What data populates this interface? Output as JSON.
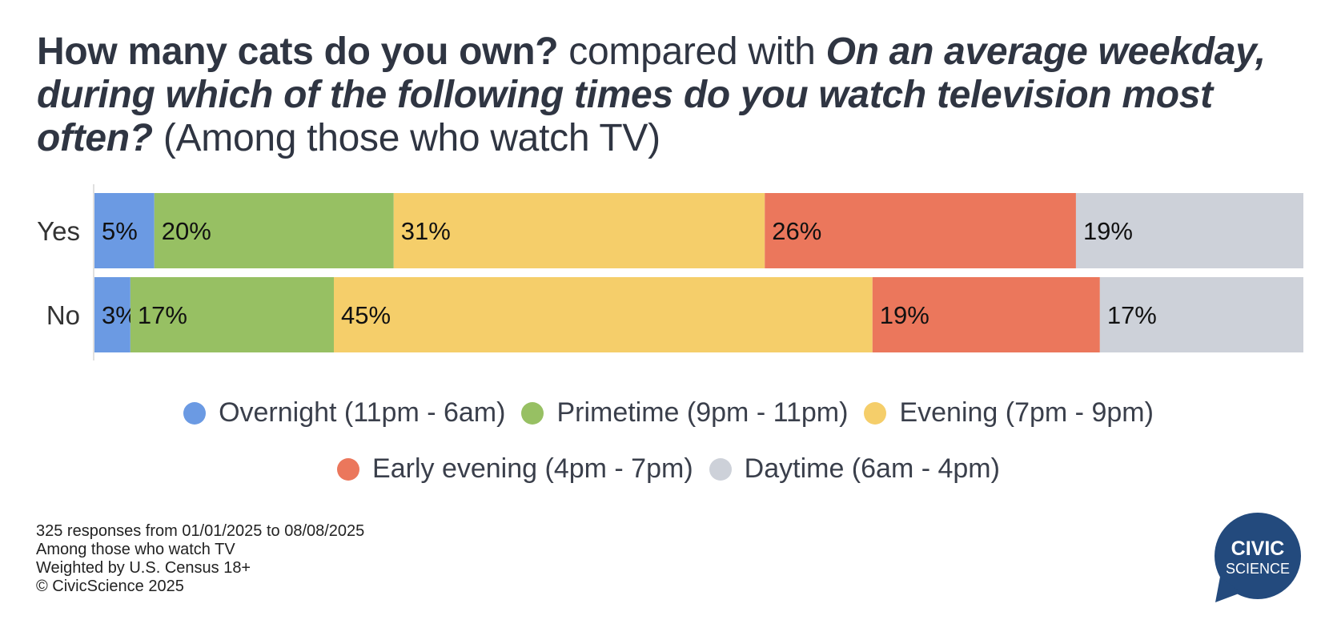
{
  "title": {
    "question1": "How many cats do you own?",
    "connector": " compared with ",
    "question2": "On an average weekday, during which of the following times do you watch television most often?",
    "subtitle": " (Among those who watch TV)"
  },
  "chart_data": {
    "type": "bar",
    "orientation": "horizontal",
    "stacked": true,
    "categories": [
      "Yes",
      "No"
    ],
    "series": [
      {
        "name": "Overnight (11pm - 6am)",
        "color": "#6b9ae3",
        "values": [
          5,
          3
        ],
        "labels": [
          "5%",
          "3%"
        ]
      },
      {
        "name": "Primetime (9pm - 11pm)",
        "color": "#97c063",
        "values": [
          20,
          17
        ],
        "labels": [
          "20%",
          "17%"
        ]
      },
      {
        "name": "Evening (7pm - 9pm)",
        "color": "#f5ce6a",
        "values": [
          31,
          45
        ],
        "labels": [
          "31%",
          "45%"
        ]
      },
      {
        "name": "Early evening (4pm - 7pm)",
        "color": "#eb775c",
        "values": [
          26,
          19
        ],
        "labels": [
          "26%",
          "19%"
        ]
      },
      {
        "name": "Daytime (6am - 4pm)",
        "color": "#cdd1d9",
        "values": [
          19,
          17
        ],
        "labels": [
          "19%",
          "17%"
        ]
      }
    ],
    "xlim": [
      0,
      100
    ],
    "grid": false,
    "legend_position": "bottom"
  },
  "footnotes": [
    "325 responses from 01/01/2025 to 08/08/2025",
    "Among those who watch TV",
    "Weighted by U.S. Census 18+",
    "© CivicScience 2025"
  ],
  "logo": {
    "line1": "CIVIC",
    "line2": "SCIENCE",
    "color": "#234a7d"
  }
}
